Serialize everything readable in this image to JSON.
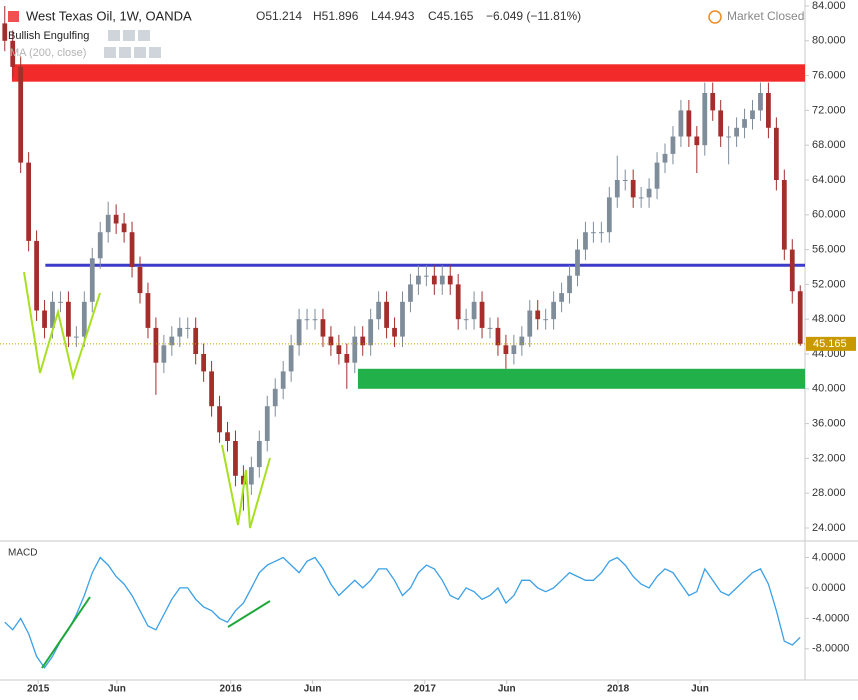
{
  "chart_data": [
    {
      "type": "candlestick",
      "title": "West Texas Oil, 1W, OANDA",
      "ohlc_labels": [
        "O51.214",
        "H51.896",
        "L44.943",
        "C45.165"
      ],
      "change": "−6.049 (−11.81%)",
      "status": "Market Closed",
      "indicators": [
        "Bullish Engulfing",
        "MA (200, close)"
      ],
      "up_color": "#7f8d9a",
      "down_color": "#a32e2c",
      "last_color": "#c99a00",
      "xlim": [
        -0.6,
        100.6
      ],
      "ylim": [
        24,
        84
      ],
      "yticks": [
        {
          "value": 84,
          "label": "84.000"
        },
        {
          "value": 80,
          "label": "80.000"
        },
        {
          "value": 76,
          "label": "76.000"
        },
        {
          "value": 72,
          "label": "72.000"
        },
        {
          "value": 68,
          "label": "68.000"
        },
        {
          "value": 64,
          "label": "64.000"
        },
        {
          "value": 60,
          "label": "60.000"
        },
        {
          "value": 56,
          "label": "56.000"
        },
        {
          "value": 52,
          "label": "52.000"
        },
        {
          "value": 48,
          "label": "48.000"
        },
        {
          "value": 44,
          "label": "44.000"
        },
        {
          "value": 40,
          "label": "40.000"
        },
        {
          "value": 36,
          "label": "36.000"
        },
        {
          "value": 32,
          "label": "32.000"
        },
        {
          "value": 28,
          "label": "28.000"
        },
        {
          "value": 24,
          "label": "24.000"
        }
      ],
      "grid": false,
      "zones": [
        {
          "low": 75.3,
          "high": 77.3,
          "start": 0.9,
          "color": "#f22a2a"
        },
        {
          "low": 40.0,
          "high": 42.3,
          "start": 44.4,
          "color": "#22b04b"
        }
      ],
      "hlines": [
        {
          "value": 54.2,
          "start": 5.1,
          "color": "#3c3cc8"
        }
      ],
      "candles": [
        [
          82,
          84,
          78.8,
          80
        ],
        [
          80,
          81.2,
          75.8,
          77
        ],
        [
          77,
          78.2,
          64.8,
          66
        ],
        [
          66,
          67.2,
          55.8,
          57
        ],
        [
          57,
          58.2,
          47.8,
          49
        ],
        [
          49,
          50.2,
          45.8,
          47
        ],
        [
          47,
          51.2,
          45.8,
          50
        ],
        [
          50,
          51.2,
          48.8,
          50
        ],
        [
          50,
          51.2,
          44.8,
          46
        ],
        [
          46,
          47.2,
          44.8,
          46
        ],
        [
          46,
          51.2,
          44.8,
          50
        ],
        [
          50,
          56.2,
          48.8,
          55
        ],
        [
          55,
          59.2,
          53.8,
          58
        ],
        [
          58,
          61.5,
          56.8,
          60
        ],
        [
          60,
          61.2,
          57.8,
          59
        ],
        [
          59,
          60.2,
          56.8,
          58
        ],
        [
          58,
          59.2,
          52.8,
          54
        ],
        [
          54,
          55.2,
          49.8,
          51
        ],
        [
          51,
          52.2,
          45.8,
          47
        ],
        [
          47,
          48.2,
          39.3,
          43
        ],
        [
          43,
          46.2,
          41.8,
          45
        ],
        [
          45,
          47.2,
          43.8,
          46
        ],
        [
          46,
          48.2,
          44.8,
          47
        ],
        [
          47,
          48.2,
          45.8,
          47
        ],
        [
          47,
          48.2,
          42.8,
          44
        ],
        [
          44,
          45.2,
          40.8,
          42
        ],
        [
          42,
          43.2,
          36.8,
          38
        ],
        [
          38,
          39.2,
          33.8,
          35
        ],
        [
          35,
          36.2,
          32.8,
          34
        ],
        [
          34,
          35.2,
          28.8,
          30
        ],
        [
          30,
          31.2,
          26,
          29
        ],
        [
          29,
          32.2,
          27.8,
          31
        ],
        [
          31,
          35.2,
          29.8,
          34
        ],
        [
          34,
          39.2,
          32.8,
          38
        ],
        [
          38,
          41.2,
          36.8,
          40
        ],
        [
          40,
          43.2,
          38.8,
          42
        ],
        [
          42,
          46.2,
          40.8,
          45
        ],
        [
          45,
          49.2,
          43.8,
          48
        ],
        [
          48,
          49.2,
          46.8,
          48
        ],
        [
          48,
          49.2,
          46.8,
          48
        ],
        [
          48,
          49.2,
          44.8,
          46
        ],
        [
          46,
          47.2,
          43.8,
          45
        ],
        [
          45,
          46.2,
          42.8,
          44
        ],
        [
          44,
          45.2,
          40,
          43
        ],
        [
          43,
          47.2,
          41.8,
          46
        ],
        [
          46,
          47.2,
          43.8,
          45
        ],
        [
          45,
          49.2,
          43.8,
          48
        ],
        [
          48,
          51.2,
          46.8,
          50
        ],
        [
          50,
          51.2,
          45.8,
          47
        ],
        [
          47,
          48.2,
          44.8,
          46
        ],
        [
          46,
          51.2,
          44.8,
          50
        ],
        [
          50,
          53.2,
          48.8,
          52
        ],
        [
          52,
          54.2,
          50.8,
          53
        ],
        [
          53,
          54.2,
          51.8,
          53
        ],
        [
          53,
          54.2,
          50.8,
          52
        ],
        [
          52,
          54.2,
          50.8,
          53
        ],
        [
          53,
          54.2,
          50.8,
          52
        ],
        [
          52,
          53.2,
          46.8,
          48
        ],
        [
          48,
          49.2,
          46.8,
          48
        ],
        [
          48,
          51.2,
          46.8,
          50
        ],
        [
          50,
          51.2,
          45.8,
          47
        ],
        [
          47,
          48.2,
          45.8,
          47
        ],
        [
          47,
          48.2,
          43.8,
          45
        ],
        [
          45,
          46.2,
          42.3,
          44
        ],
        [
          44,
          46.2,
          42.8,
          45
        ],
        [
          45,
          47.2,
          43.8,
          46
        ],
        [
          46,
          50.2,
          44.8,
          49
        ],
        [
          49,
          50.2,
          46.8,
          48
        ],
        [
          48,
          49.2,
          46.8,
          48
        ],
        [
          48,
          51.2,
          46.8,
          50
        ],
        [
          50,
          52.2,
          48.8,
          51
        ],
        [
          51,
          54.2,
          49.8,
          53
        ],
        [
          53,
          57.2,
          51.8,
          56
        ],
        [
          56,
          59.2,
          54.8,
          58
        ],
        [
          58,
          59.2,
          56.8,
          58
        ],
        [
          58,
          59.2,
          56.8,
          58
        ],
        [
          58,
          63.2,
          56.8,
          62
        ],
        [
          62,
          66.8,
          60.8,
          64
        ],
        [
          64,
          65.2,
          62.8,
          64
        ],
        [
          64,
          65.2,
          60.8,
          62
        ],
        [
          62,
          63.2,
          60.8,
          62
        ],
        [
          62,
          64.2,
          60.8,
          63
        ],
        [
          63,
          67.2,
          61.8,
          66
        ],
        [
          66,
          68.2,
          64.8,
          67
        ],
        [
          67,
          70.2,
          65.8,
          69
        ],
        [
          69,
          73.2,
          67.8,
          72
        ],
        [
          72,
          73.2,
          67.8,
          69
        ],
        [
          69,
          70.2,
          64.8,
          68
        ],
        [
          68,
          75.2,
          66.8,
          74
        ],
        [
          74,
          75.2,
          70.8,
          72
        ],
        [
          72,
          73.2,
          67.8,
          69
        ],
        [
          69,
          70.2,
          65.8,
          69
        ],
        [
          69,
          71.2,
          67.8,
          70
        ],
        [
          70,
          72.2,
          68.8,
          71
        ],
        [
          71,
          73.2,
          69.8,
          72
        ],
        [
          72,
          75.2,
          70.8,
          74
        ],
        [
          74,
          75.2,
          68.8,
          70
        ],
        [
          70,
          71.2,
          62.8,
          64
        ],
        [
          64,
          65.2,
          54.8,
          56
        ],
        [
          56,
          57.2,
          49.8,
          51.214
        ],
        [
          51.214,
          51.896,
          44.943,
          45.165
        ]
      ]
    },
    {
      "type": "line",
      "title": "MACD",
      "color": "#3aa0e8",
      "ylim": [
        -12.1,
        5.9
      ],
      "yticks": [
        {
          "value": 4,
          "label": "4.0000"
        },
        {
          "value": 0,
          "label": "0.0000"
        },
        {
          "value": -4,
          "label": "-4.0000"
        },
        {
          "value": -8,
          "label": "-8.0000"
        }
      ],
      "xticks": [
        {
          "value": 4.2,
          "label": "2015"
        },
        {
          "value": 14.1,
          "label": "Jun"
        },
        {
          "value": 28.4,
          "label": "2016"
        },
        {
          "value": 38.7,
          "label": "Jun"
        },
        {
          "value": 52.8,
          "label": "2017"
        },
        {
          "value": 63.1,
          "label": "Jun"
        },
        {
          "value": 77.1,
          "label": "2018"
        },
        {
          "value": 87.4,
          "label": "Jun"
        }
      ],
      "values": [
        -4.5,
        -5.5,
        -4,
        -6,
        -9,
        -10.5,
        -9,
        -7,
        -5.5,
        -3.5,
        -1,
        2,
        4,
        3,
        1.5,
        0.5,
        -1,
        -3,
        -5,
        -5.5,
        -3.5,
        -1.5,
        0,
        0,
        -1.5,
        -2.5,
        -3,
        -4,
        -4.5,
        -3,
        -2,
        0,
        2,
        3,
        3.5,
        4,
        3,
        2,
        3.5,
        4,
        2.5,
        0.5,
        -1,
        0,
        1,
        0,
        1,
        2.5,
        2.5,
        1,
        -1,
        0,
        2,
        3,
        2.5,
        1,
        -1,
        -1.5,
        0,
        -0.5,
        -1.5,
        -1,
        0,
        -2,
        -1,
        1,
        1,
        0,
        -0.5,
        0,
        1,
        2,
        1.5,
        1,
        1,
        2,
        3.5,
        4,
        3,
        1.5,
        0.5,
        0,
        1.5,
        2.5,
        2,
        0.5,
        -1,
        -0.5,
        2.5,
        1,
        -0.5,
        -1,
        0,
        1,
        2,
        2.5,
        0.5,
        -3,
        -7,
        -7.5,
        -6.5
      ]
    }
  ]
}
